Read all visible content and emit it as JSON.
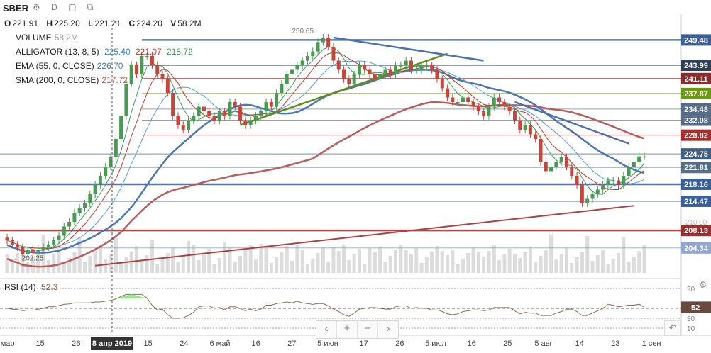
{
  "header": {
    "symbol": "SBER",
    "icons": [
      "gear-icon",
      "d-icon",
      "square-icon",
      "window-icon"
    ],
    "icon_text": "⚙ D ▢ ⧉"
  },
  "ohlc": {
    "o_label": "O",
    "o": "221.91",
    "h_label": "H",
    "h": "225.20",
    "l_label": "L",
    "l": "221.21",
    "c_label": "C",
    "c": "224.20",
    "v_label": "V",
    "v": "58.2M"
  },
  "legend": {
    "volume_label": "VOLUME",
    "volume_value": "58.2M",
    "alligator_label": "ALLIGATOR (13, 8, 5)",
    "alligator_v1": "225.40",
    "alligator_v2": "221.07",
    "alligator_v3": "218.72",
    "ema_label": "EMA (55, 0, CLOSE)",
    "ema_value": "226.70",
    "sma_label": "SMA (200, 0, CLOSE)",
    "sma_value": "217.72"
  },
  "rsi": {
    "label": "RSI (14)",
    "value": "52.3",
    "badge": "52",
    "ticks": [
      "90",
      "30",
      "10"
    ]
  },
  "colors": {
    "up": "#4a9a54",
    "down": "#c8453b",
    "sma": "#b85c5c",
    "ema": "#4a76b4",
    "jaw": "#5aa0d8",
    "teeth": "#c0392b",
    "lips": "#3a9d5a",
    "trend_green": "#5c8c14",
    "trend_blue": "#4a70b0",
    "trend_red": "#b04040",
    "volume": "#dcdcdc",
    "rsi": "#8b6b5b"
  },
  "price_axis": {
    "badges": [
      {
        "label": "249.48",
        "bg": "#3a5f9a"
      },
      {
        "label": "243.99",
        "bg": "#2f3f55"
      },
      {
        "label": "241.11",
        "bg": "#8a2a2a"
      },
      {
        "label": "237.87",
        "bg": "#6a9a10"
      },
      {
        "label": "234.48",
        "bg": "#566c87"
      },
      {
        "label": "232.08",
        "bg": "#566c87"
      },
      {
        "label": "228.82",
        "bg": "#a82e2e"
      },
      {
        "label": "224.75",
        "bg": "#3f5f85"
      },
      {
        "label": "221.81",
        "bg": "#566c87"
      },
      {
        "label": "218.16",
        "bg": "#3a5f9a"
      },
      {
        "label": "214.47",
        "bg": "#3a5f9a"
      },
      {
        "label": "208.13",
        "bg": "#9b2e2e"
      },
      {
        "label": "204.34",
        "bg": "#8fa6d0"
      }
    ],
    "faint_labels": [
      "210.00"
    ]
  },
  "time_axis": {
    "labels": [
      "5 мар",
      "15",
      "26",
      "8 апр 2019",
      "15",
      "24",
      "6 май",
      "16",
      "27",
      "5 июн",
      "17",
      "26",
      "5 июл",
      "16",
      "25",
      "5 авг",
      "14",
      "23",
      "1 сен"
    ],
    "highlighted": "8 апр 2019"
  },
  "annotations": {
    "high_marker": "250.65",
    "low_marker": "202.25"
  },
  "chart_data": {
    "type": "candlestick",
    "title": "SBER",
    "x": [
      "2019-03-05",
      "2019-03-06",
      "2019-03-07",
      "2019-03-11",
      "2019-03-12",
      "2019-03-13",
      "2019-03-14",
      "2019-03-15",
      "2019-03-18",
      "2019-03-19",
      "2019-03-20",
      "2019-03-21",
      "2019-03-22",
      "2019-03-25",
      "2019-03-26",
      "2019-03-27",
      "2019-03-28",
      "2019-03-29",
      "2019-04-01",
      "2019-04-02",
      "2019-04-03",
      "2019-04-04",
      "2019-04-05",
      "2019-04-08",
      "2019-04-09",
      "2019-04-10",
      "2019-04-11",
      "2019-04-12",
      "2019-04-15",
      "2019-04-16",
      "2019-04-17",
      "2019-04-18",
      "2019-04-19",
      "2019-04-22",
      "2019-04-23",
      "2019-04-24",
      "2019-04-25",
      "2019-04-26",
      "2019-04-29",
      "2019-04-30",
      "2019-05-02",
      "2019-05-03",
      "2019-05-06",
      "2019-05-07",
      "2019-05-08",
      "2019-05-13",
      "2019-05-14",
      "2019-05-15",
      "2019-05-16",
      "2019-05-17",
      "2019-05-20",
      "2019-05-21",
      "2019-05-22",
      "2019-05-23",
      "2019-05-24",
      "2019-05-27",
      "2019-05-28",
      "2019-05-29",
      "2019-05-30",
      "2019-05-31",
      "2019-06-03",
      "2019-06-04",
      "2019-06-05",
      "2019-06-06",
      "2019-06-07",
      "2019-06-10",
      "2019-06-11",
      "2019-06-13",
      "2019-06-14",
      "2019-06-17",
      "2019-06-18",
      "2019-06-19",
      "2019-06-20",
      "2019-06-21",
      "2019-06-24",
      "2019-06-25",
      "2019-06-26",
      "2019-06-27",
      "2019-06-28",
      "2019-07-01",
      "2019-07-02",
      "2019-07-03",
      "2019-07-04",
      "2019-07-05",
      "2019-07-08",
      "2019-07-09",
      "2019-07-10",
      "2019-07-11",
      "2019-07-12",
      "2019-07-15",
      "2019-07-16",
      "2019-07-17",
      "2019-07-18",
      "2019-07-19",
      "2019-07-22",
      "2019-07-23",
      "2019-07-24",
      "2019-07-25",
      "2019-07-26",
      "2019-07-29",
      "2019-07-30",
      "2019-07-31",
      "2019-08-01",
      "2019-08-02",
      "2019-08-05",
      "2019-08-06",
      "2019-08-07",
      "2019-08-08",
      "2019-08-09",
      "2019-08-12",
      "2019-08-13",
      "2019-08-14",
      "2019-08-15",
      "2019-08-16",
      "2019-08-19",
      "2019-08-20",
      "2019-08-21",
      "2019-08-22",
      "2019-08-23",
      "2019-08-26",
      "2019-08-27",
      "2019-08-28",
      "2019-08-29",
      "2019-08-30"
    ],
    "close": [
      206,
      205,
      204.5,
      203,
      204,
      203.5,
      204,
      204.5,
      205,
      206,
      207,
      209,
      210,
      212,
      213,
      214,
      216,
      218,
      220,
      222,
      224,
      228,
      233,
      240,
      244,
      242,
      246,
      246,
      244,
      242,
      241,
      238,
      233,
      231,
      230,
      232,
      233,
      235,
      234,
      233,
      232,
      234,
      233,
      236,
      235,
      232,
      231,
      232,
      233,
      234,
      236,
      235,
      238,
      240,
      242,
      243,
      244,
      245,
      246,
      247,
      249,
      250,
      248,
      245,
      243,
      241,
      240,
      242,
      244,
      243,
      242,
      241,
      242,
      243,
      242,
      244,
      244,
      245,
      243,
      243,
      244,
      244,
      243,
      241,
      239,
      237,
      236,
      236,
      237,
      236,
      235,
      234,
      233,
      235,
      237,
      236,
      235,
      234,
      232,
      230,
      231,
      229,
      228,
      223,
      221,
      222,
      223,
      224,
      222,
      220,
      218,
      214,
      215,
      216,
      217,
      218,
      219,
      219,
      218,
      220,
      222,
      223,
      224.2,
      224.2
    ],
    "series": [
      {
        "name": "SMA (200, 0, CLOSE)",
        "last": 217.72
      },
      {
        "name": "EMA (55, 0, CLOSE)",
        "last": 226.7
      },
      {
        "name": "ALLIGATOR (13, 8, 5)",
        "values_last": [
          225.4,
          221.07,
          218.72
        ]
      }
    ],
    "horizontal_levels": [
      249.48,
      243.99,
      241.11,
      237.87,
      234.48,
      232.08,
      228.82,
      224.75,
      221.81,
      218.16,
      214.47,
      208.13,
      204.34
    ],
    "ylim": [
      200,
      252
    ],
    "xlabel": "",
    "ylabel": "",
    "rsi": {
      "label": "RSI (14)",
      "last": 52.3,
      "levels": [
        90,
        30,
        10
      ]
    },
    "grid": false,
    "legend_position": "top-left"
  }
}
